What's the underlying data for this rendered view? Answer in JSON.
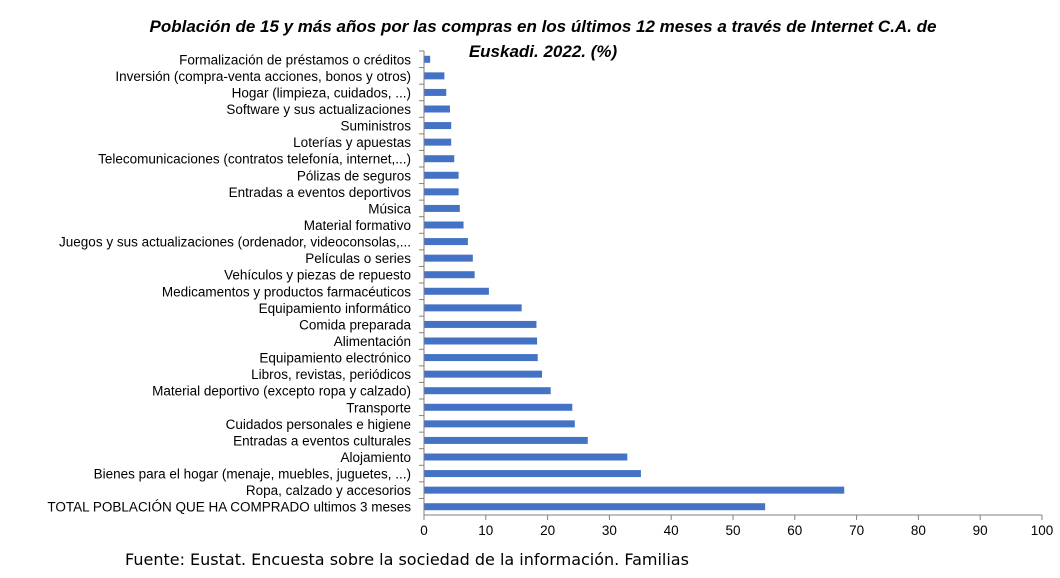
{
  "chart_data": {
    "type": "bar",
    "orientation": "horizontal",
    "title_line1": "Población de 15 y más años por las compras  en los últimos 12 meses a través de Internet C.A. de",
    "title_line2": "Euskadi. 2022. (%)",
    "categories": [
      "Formalización de préstamos o créditos",
      "Inversión (compra-venta acciones, bonos y otros)",
      "Hogar (limpieza, cuidados, ...)",
      "Software y sus actualizaciones",
      "Suministros",
      "Loterías y apuestas",
      "Telecomunicaciones (contratos telefonía, internet,...)",
      "Pólizas de seguros",
      "Entradas a eventos deportivos",
      "Música",
      "Material formativo",
      "Juegos y sus actualizaciones (ordenador, videoconsolas,...",
      "Películas o series",
      "Vehículos y piezas de repuesto",
      "Medicamentos y productos farmacéuticos",
      "Equipamiento informático",
      "Comida preparada",
      "Alimentación",
      "Equipamiento electrónico",
      "Libros, revistas, periódicos",
      "Material deportivo (excepto ropa y calzado)",
      "Transporte",
      "Cuidados personales e higiene",
      "Entradas a eventos culturales",
      "Alojamiento",
      "Bienes para el hogar (menaje, muebles, juguetes, ...)",
      "Ropa, calzado y accesorios",
      "TOTAL POBLACIÓN QUE HA COMPRADO ultimos 3 meses"
    ],
    "values": [
      1.0,
      3.3,
      3.6,
      4.2,
      4.4,
      4.4,
      4.9,
      5.6,
      5.6,
      5.8,
      6.4,
      7.1,
      7.9,
      8.2,
      10.5,
      15.8,
      18.2,
      18.3,
      18.4,
      19.1,
      20.5,
      24.0,
      24.4,
      26.5,
      32.9,
      35.1,
      68.0,
      55.2
    ],
    "xlim": [
      0,
      100
    ],
    "xticks": [
      "0",
      "10",
      "20",
      "30",
      "40",
      "50",
      "60",
      "70",
      "80",
      "90",
      "100"
    ],
    "bar_color": "#4472C4",
    "grid": false,
    "legend": "none"
  },
  "source": "Fuente: Eustat. Encuesta sobre la sociedad de la información. Familias"
}
